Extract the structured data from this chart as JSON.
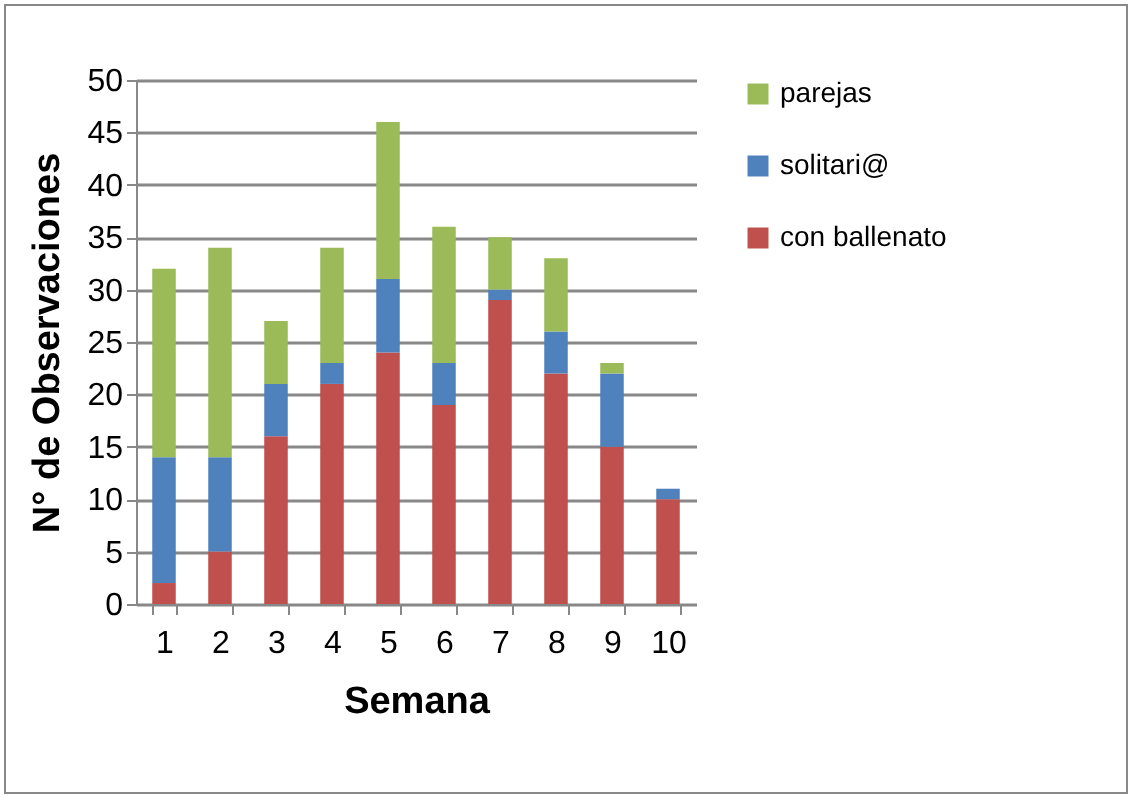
{
  "chart_data": {
    "type": "bar",
    "stacked": true,
    "xlabel": "Semana",
    "ylabel": "N° de Observaciones",
    "categories": [
      "1",
      "2",
      "3",
      "4",
      "5",
      "6",
      "7",
      "8",
      "9",
      "10"
    ],
    "series": [
      {
        "name": "con ballenato",
        "color": "#c0504d",
        "values": [
          2,
          5,
          16,
          21,
          24,
          19,
          29,
          22,
          15,
          10
        ]
      },
      {
        "name": "solitari@",
        "color": "#4f81bd",
        "values": [
          12,
          9,
          5,
          2,
          7,
          4,
          1,
          4,
          7,
          1
        ]
      },
      {
        "name": "parejas",
        "color": "#9bbb59",
        "values": [
          18,
          20,
          6,
          11,
          15,
          13,
          5,
          7,
          1,
          0
        ]
      }
    ],
    "ylim": [
      0,
      50
    ],
    "yticks": [
      0,
      5,
      10,
      15,
      20,
      25,
      30,
      35,
      40,
      45,
      50
    ],
    "grid": "y",
    "legend": "right"
  }
}
